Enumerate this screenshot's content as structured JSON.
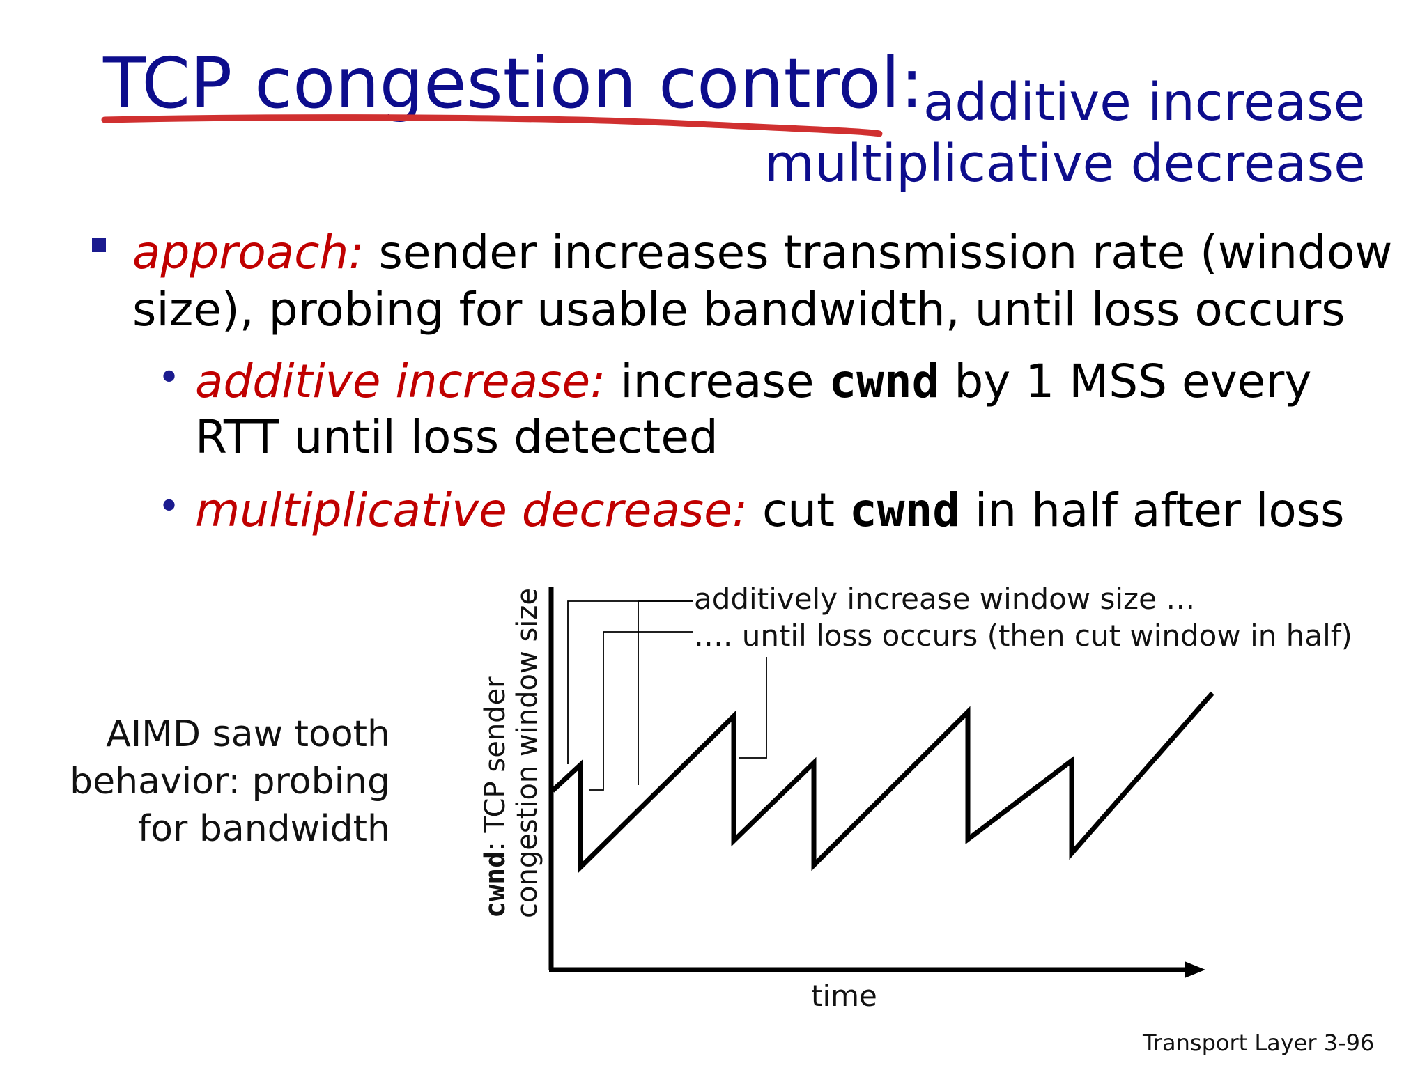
{
  "title": {
    "main": "TCP congestion control",
    "colon": ":",
    "sub_line1": "additive increase",
    "sub_line2": "multiplicative decrease"
  },
  "bullets": {
    "approach_label": "approach:",
    "approach_text_1": " sender increases transmission rate (window",
    "approach_text_2": "size), probing for usable bandwidth, until loss occurs",
    "ai_label": "additive increase:",
    "ai_text_a": " increase ",
    "ai_code": "cwnd",
    "ai_text_b": " by 1 MSS every",
    "ai_text_2": "RTT until loss detected",
    "md_label": "multiplicative decrease:",
    "md_text_a": " cut ",
    "md_code": "cwnd",
    "md_text_b": " in half after loss"
  },
  "diagram": {
    "caption_1": "AIMD saw tooth",
    "caption_2": "behavior: probing",
    "caption_3": "for bandwidth",
    "annotation_1": "additively increase window size …",
    "annotation_2": "…. until loss occurs (then cut window in half)",
    "y_label_code": "cwnd",
    "y_label_rest": ": TCP sender",
    "y_label_line2": "congestion window size",
    "x_label": "time"
  },
  "footer": {
    "text": "Transport Layer",
    "page": "3-96"
  },
  "colors": {
    "title": "#0d0d8c",
    "emphasis": "#c00000",
    "underline": "#d03030",
    "bullet": "#1b1b8f"
  }
}
